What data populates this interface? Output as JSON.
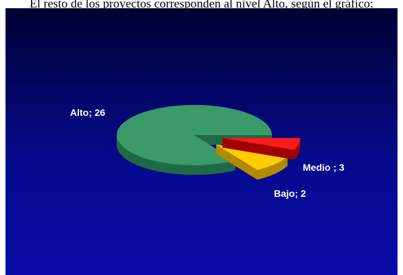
{
  "caption": "El resto de los proyectos corresponden al nivel Alto, según el gráfico:",
  "colors": {
    "background_top": "#000033",
    "background_bottom": "#0a0aa8",
    "label_text": "#ffffff"
  },
  "chart_data": {
    "type": "pie",
    "style": "3d-exploded",
    "title": "",
    "slices": [
      {
        "label": "Alto; 26",
        "category": "Alto",
        "value": 26,
        "color": "#3a9a6a",
        "side": "#1f6a44",
        "exploded": false
      },
      {
        "label": "Medio ; 3",
        "category": "Medio",
        "value": 3,
        "color": "#ffcc00",
        "side": "#b08a00",
        "exploded": true
      },
      {
        "label": "Bajo; 2",
        "category": "Bajo",
        "value": 2,
        "color": "#ff1a1a",
        "side": "#a00000",
        "exploded": true
      }
    ],
    "legend": "none"
  }
}
